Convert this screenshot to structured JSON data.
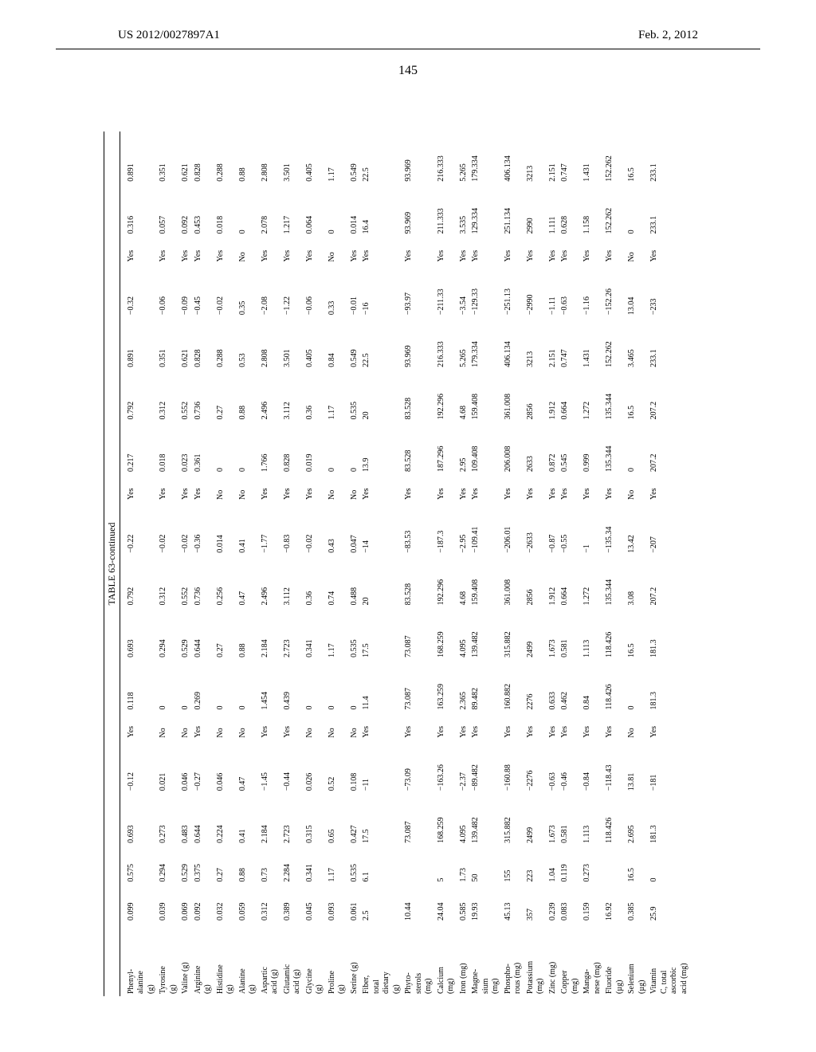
{
  "header": {
    "left": "US 2012/0027897A1",
    "right": "Feb. 2, 2012"
  },
  "page_number": "145",
  "table": {
    "caption": "TABLE 63-continued",
    "rows": [
      {
        "label": "Phenyl-\nalanine\n(g)",
        "c": [
          "0.099",
          "0.575",
          "0.693",
          "−0.12",
          "Yes",
          "0.118",
          "0.693",
          "0.792",
          "−0.22",
          "Yes",
          "0.217",
          "0.792",
          "0.891",
          "−0.32",
          "Yes",
          "0.316",
          "0.891"
        ]
      },
      {
        "label": "Tyrosine\n(g)",
        "c": [
          "0.039",
          "0.294",
          "0.273",
          "0.021",
          "No",
          "0",
          "0.294",
          "0.312",
          "−0.02",
          "Yes",
          "0.018",
          "0.312",
          "0.351",
          "−0.06",
          "Yes",
          "0.057",
          "0.351"
        ]
      },
      {
        "label": "Valine (g)",
        "c": [
          "0.069",
          "0.529",
          "0.483",
          "0.046",
          "No",
          "0",
          "0.529",
          "0.552",
          "−0.02",
          "Yes",
          "0.023",
          "0.552",
          "0.621",
          "−0.09",
          "Yes",
          "0.092",
          "0.621"
        ]
      },
      {
        "label": "Arginine\n(g)",
        "c": [
          "0.092",
          "0.375",
          "0.644",
          "−0.27",
          "Yes",
          "0.269",
          "0.644",
          "0.736",
          "−0.36",
          "Yes",
          "0.361",
          "0.736",
          "0.828",
          "−0.45",
          "Yes",
          "0.453",
          "0.828"
        ]
      },
      {
        "label": "Histidine\n(g)",
        "c": [
          "0.032",
          "0.27",
          "0.224",
          "0.046",
          "No",
          "0",
          "0.27",
          "0.256",
          "0.014",
          "No",
          "0",
          "0.27",
          "0.288",
          "−0.02",
          "Yes",
          "0.018",
          "0.288"
        ]
      },
      {
        "label": "Alanine\n(g)",
        "c": [
          "0.059",
          "0.88",
          "0.41",
          "0.47",
          "No",
          "0",
          "0.88",
          "0.47",
          "0.41",
          "No",
          "0",
          "0.88",
          "0.53",
          "0.35",
          "No",
          "0",
          "0.88"
        ]
      },
      {
        "label": "Aspartic\nacid (g)",
        "c": [
          "0.312",
          "0.73",
          "2.184",
          "−1.45",
          "Yes",
          "1.454",
          "2.184",
          "2.496",
          "−1.77",
          "Yes",
          "1.766",
          "2.496",
          "2.808",
          "−2.08",
          "Yes",
          "2.078",
          "2.808"
        ]
      },
      {
        "label": "Glutamic\nacid (g)",
        "c": [
          "0.389",
          "2.284",
          "2.723",
          "−0.44",
          "Yes",
          "0.439",
          "2.723",
          "3.112",
          "−0.83",
          "Yes",
          "0.828",
          "3.112",
          "3.501",
          "−1.22",
          "Yes",
          "1.217",
          "3.501"
        ]
      },
      {
        "label": "Glycine\n(g)",
        "c": [
          "0.045",
          "0.341",
          "0.315",
          "0.026",
          "No",
          "0",
          "0.341",
          "0.36",
          "−0.02",
          "Yes",
          "0.019",
          "0.36",
          "0.405",
          "−0.06",
          "Yes",
          "0.064",
          "0.405"
        ]
      },
      {
        "label": "Proline\n(g)",
        "c": [
          "0.093",
          "1.17",
          "0.65",
          "0.52",
          "No",
          "0",
          "1.17",
          "0.74",
          "0.43",
          "No",
          "0",
          "1.17",
          "0.84",
          "0.33",
          "No",
          "0",
          "1.17"
        ]
      },
      {
        "label": "Serine (g)",
        "c": [
          "0.061",
          "0.535",
          "0.427",
          "0.108",
          "No",
          "0",
          "0.535",
          "0.488",
          "0.047",
          "No",
          "0",
          "0.535",
          "0.549",
          "−0.01",
          "Yes",
          "0.014",
          "0.549"
        ]
      },
      {
        "label": "Fiber,\ntotal\ndietary\n(g)",
        "c": [
          "2.5",
          "6.1",
          "17.5",
          "−11",
          "Yes",
          "11.4",
          "17.5",
          "20",
          "−14",
          "Yes",
          "13.9",
          "20",
          "22.5",
          "−16",
          "Yes",
          "16.4",
          "22.5"
        ]
      },
      {
        "label": "Phyto-\nsterols\n(mg)",
        "c": [
          "10.44",
          "",
          "73.087",
          "−73.09",
          "Yes",
          "73.087",
          "73.087",
          "83.528",
          "−83.53",
          "Yes",
          "83.528",
          "83.528",
          "93.969",
          "−93.97",
          "Yes",
          "93.969",
          "93.969"
        ]
      },
      {
        "label": "Calcium\n(mg)",
        "c": [
          "24.04",
          "5",
          "168.259",
          "−163.26",
          "Yes",
          "163.259",
          "168.259",
          "192.296",
          "−187.3",
          "Yes",
          "187.296",
          "192.296",
          "216.333",
          "−211.33",
          "Yes",
          "211.333",
          "216.333"
        ]
      },
      {
        "label": "Iron (mg)",
        "c": [
          "0.585",
          "1.73",
          "4.095",
          "−2.37",
          "Yes",
          "2.365",
          "4.095",
          "4.68",
          "−2.95",
          "Yes",
          "2.95",
          "4.68",
          "5.265",
          "−3.54",
          "Yes",
          "3.535",
          "5.265"
        ]
      },
      {
        "label": "Magne-\nsium\n(mg)",
        "c": [
          "19.93",
          "50",
          "139.482",
          "−89.482",
          "Yes",
          "89.482",
          "139.482",
          "159.408",
          "−109.41",
          "Yes",
          "109.408",
          "159.408",
          "179.334",
          "−129.33",
          "Yes",
          "129.334",
          "179.334"
        ]
      },
      {
        "label": "Phospho-\nrous (mg)",
        "c": [
          "45.13",
          "155",
          "315.882",
          "−160.88",
          "Yes",
          "160.882",
          "315.882",
          "361.008",
          "−206.01",
          "Yes",
          "206.008",
          "361.008",
          "406.134",
          "−251.13",
          "Yes",
          "251.134",
          "406.134"
        ]
      },
      {
        "label": "Potassium\n(mg)",
        "c": [
          "357",
          "223",
          "2499",
          "−2276",
          "Yes",
          "2276",
          "2499",
          "2856",
          "−2633",
          "Yes",
          "2633",
          "2856",
          "3213",
          "−2990",
          "Yes",
          "2990",
          "3213"
        ]
      },
      {
        "label": "Zinc (mg)",
        "c": [
          "0.239",
          "1.04",
          "1.673",
          "−0.63",
          "Yes",
          "0.633",
          "1.673",
          "1.912",
          "−0.87",
          "Yes",
          "0.872",
          "1.912",
          "2.151",
          "−1.11",
          "Yes",
          "1.111",
          "2.151"
        ]
      },
      {
        "label": "Copper\n(mg)",
        "c": [
          "0.083",
          "0.119",
          "0.581",
          "−0.46",
          "Yes",
          "0.462",
          "0.581",
          "0.664",
          "−0.55",
          "Yes",
          "0.545",
          "0.664",
          "0.747",
          "−0.63",
          "Yes",
          "0.628",
          "0.747"
        ]
      },
      {
        "label": "Manga-\nnese (mg)",
        "c": [
          "0.159",
          "0.273",
          "1.113",
          "−0.84",
          "Yes",
          "0.84",
          "1.113",
          "1.272",
          "−1",
          "Yes",
          "0.999",
          "1.272",
          "1.431",
          "−1.16",
          "Yes",
          "1.158",
          "1.431"
        ]
      },
      {
        "label": "Fluoride\n(µg)",
        "c": [
          "16.92",
          "",
          "118.426",
          "−118.43",
          "Yes",
          "118.426",
          "118.426",
          "135.344",
          "−135.34",
          "Yes",
          "135.344",
          "135.344",
          "152.262",
          "−152.26",
          "Yes",
          "152.262",
          "152.262"
        ]
      },
      {
        "label": "Selenium\n(µg)",
        "c": [
          "0.385",
          "16.5",
          "2.695",
          "13.81",
          "No",
          "0",
          "16.5",
          "3.08",
          "13.42",
          "No",
          "0",
          "16.5",
          "3.465",
          "13.04",
          "No",
          "0",
          "16.5"
        ]
      },
      {
        "label": "Vitamin\nC, total\nascorbic\nacid (mg)",
        "c": [
          "25.9",
          "0",
          "181.3",
          "−181",
          "Yes",
          "181.3",
          "181.3",
          "207.2",
          "−207",
          "Yes",
          "207.2",
          "207.2",
          "233.1",
          "−233",
          "Yes",
          "233.1",
          "233.1"
        ]
      }
    ]
  }
}
